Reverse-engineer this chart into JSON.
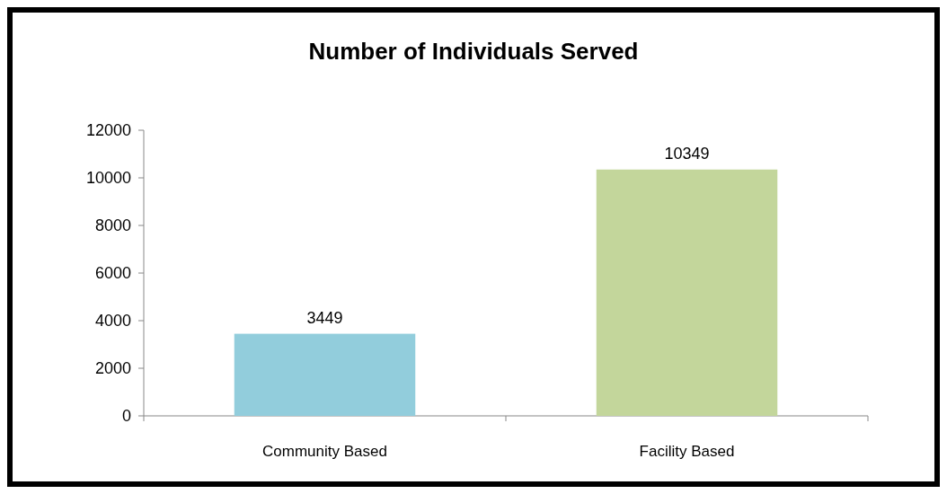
{
  "chart_data": {
    "type": "bar",
    "title": "Number of Individuals Served",
    "categories": [
      "Community Based",
      "Facility Based"
    ],
    "values": [
      3449,
      10349
    ],
    "colors": [
      "#92cddc",
      "#c3d69b"
    ],
    "ylim": [
      0,
      12000
    ],
    "yticks": [
      0,
      2000,
      4000,
      6000,
      8000,
      10000,
      12000
    ],
    "data_labels": true
  }
}
